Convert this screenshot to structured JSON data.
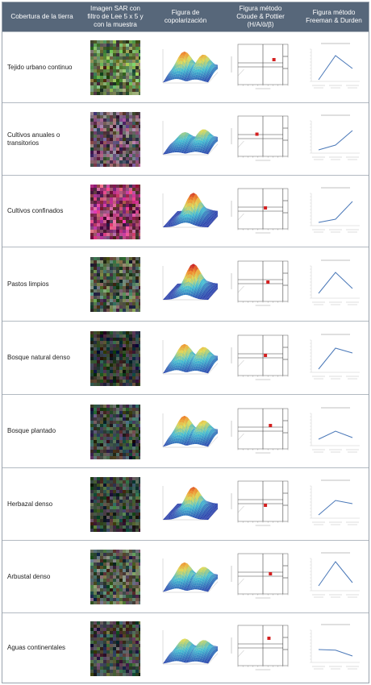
{
  "headers": [
    {
      "id": "cover",
      "text": "Cobertura de la tierra"
    },
    {
      "id": "sar",
      "text": "Imagen SAR con\nfiltro de Lee 5 x 5 y\ncon la muestra"
    },
    {
      "id": "copol",
      "text": "Figura de\ncopolarización"
    },
    {
      "id": "cloude",
      "text": "Figura método\nCloude & Pottier\n(H/A/ᾱ/β)"
    },
    {
      "id": "freeman",
      "text": "Figura método\nFreeman & Durden"
    }
  ],
  "colors": {
    "header_bg": "#57677a",
    "header_text": "#ffffff",
    "line": "#4a78b8",
    "marker": "#d42020",
    "border": "#b3bac2"
  },
  "rows": [
    {
      "cover": "Tejido urbano continuo",
      "sar_tint": "#7fa060",
      "pol_peaks": [
        0.75,
        0.65
      ],
      "marker": [
        0.72,
        0.62
      ],
      "freeman": [
        5,
        80,
        40
      ]
    },
    {
      "cover": "Cultivos anuales o transitorios",
      "sar_tint": "#8a6a80",
      "pol_peaks": [
        0.45,
        0.55
      ],
      "marker": [
        0.38,
        0.55
      ],
      "freeman": [
        10,
        25,
        70
      ]
    },
    {
      "cover": "Cultivos confinados",
      "sar_tint": "#c04c86",
      "pol_peaks": [
        0.85
      ],
      "marker": [
        0.55,
        0.52
      ],
      "freeman": [
        10,
        20,
        75
      ]
    },
    {
      "cover": "Pastos limpios",
      "sar_tint": "#6c7a60",
      "pol_peaks": [
        0.9
      ],
      "marker": [
        0.6,
        0.48
      ],
      "freeman": [
        15,
        80,
        30
      ]
    },
    {
      "cover": "Bosque natural denso",
      "sar_tint": "#404a40",
      "pol_peaks": [
        0.7,
        0.6
      ],
      "marker": [
        0.55,
        0.5
      ],
      "freeman": [
        10,
        75,
        60
      ]
    },
    {
      "cover": "Bosque plantado",
      "sar_tint": "#505a58",
      "pol_peaks": [
        0.75,
        0.6
      ],
      "marker": [
        0.65,
        0.58
      ],
      "freeman": [
        20,
        45,
        25
      ]
    },
    {
      "cover": "Herbazal denso",
      "sar_tint": "#4a5a4a",
      "pol_peaks": [
        0.8
      ],
      "marker": [
        0.55,
        0.4
      ],
      "freeman": [
        10,
        55,
        45
      ]
    },
    {
      "cover": "Arbustal denso",
      "sar_tint": "#6a7a68",
      "pol_peaks": [
        0.7,
        0.55
      ],
      "marker": [
        0.65,
        0.5
      ],
      "freeman": [
        15,
        90,
        25
      ]
    },
    {
      "cover": "Aguas continentales",
      "sar_tint": "#505850",
      "pol_peaks": [
        0.55,
        0.5
      ],
      "marker": [
        0.62,
        0.68
      ],
      "freeman": [
        40,
        38,
        20
      ]
    }
  ]
}
